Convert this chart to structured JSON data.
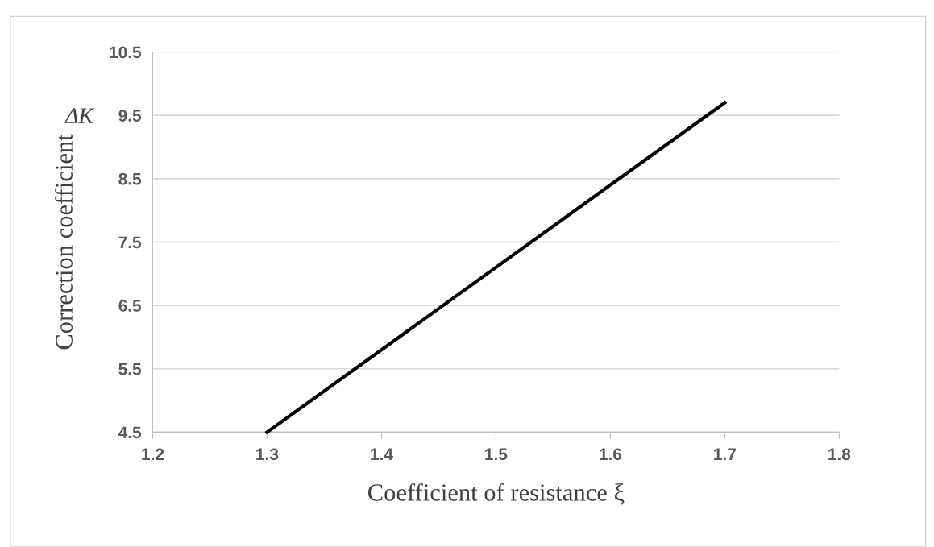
{
  "chart_data": {
    "type": "line",
    "xlabel": "Coefficient of resistance ξ",
    "ylabel": "Correction coefficient",
    "annotations": [
      "ΔK"
    ],
    "x": [
      1.3,
      1.7
    ],
    "series": [
      {
        "color": "#000000",
        "values": [
          4.5,
          9.7
        ]
      }
    ],
    "xlim": [
      1.2,
      1.8
    ],
    "xticks": [
      1.2,
      1.3,
      1.4,
      1.5,
      1.6,
      1.7,
      1.8
    ],
    "ylim": [
      4.5,
      10.5
    ],
    "yticks": [
      4.5,
      5.5,
      6.5,
      7.5,
      8.5,
      9.5,
      10.5
    ],
    "grid": "y",
    "legend": false,
    "marker": "none",
    "line_style": "solid"
  }
}
